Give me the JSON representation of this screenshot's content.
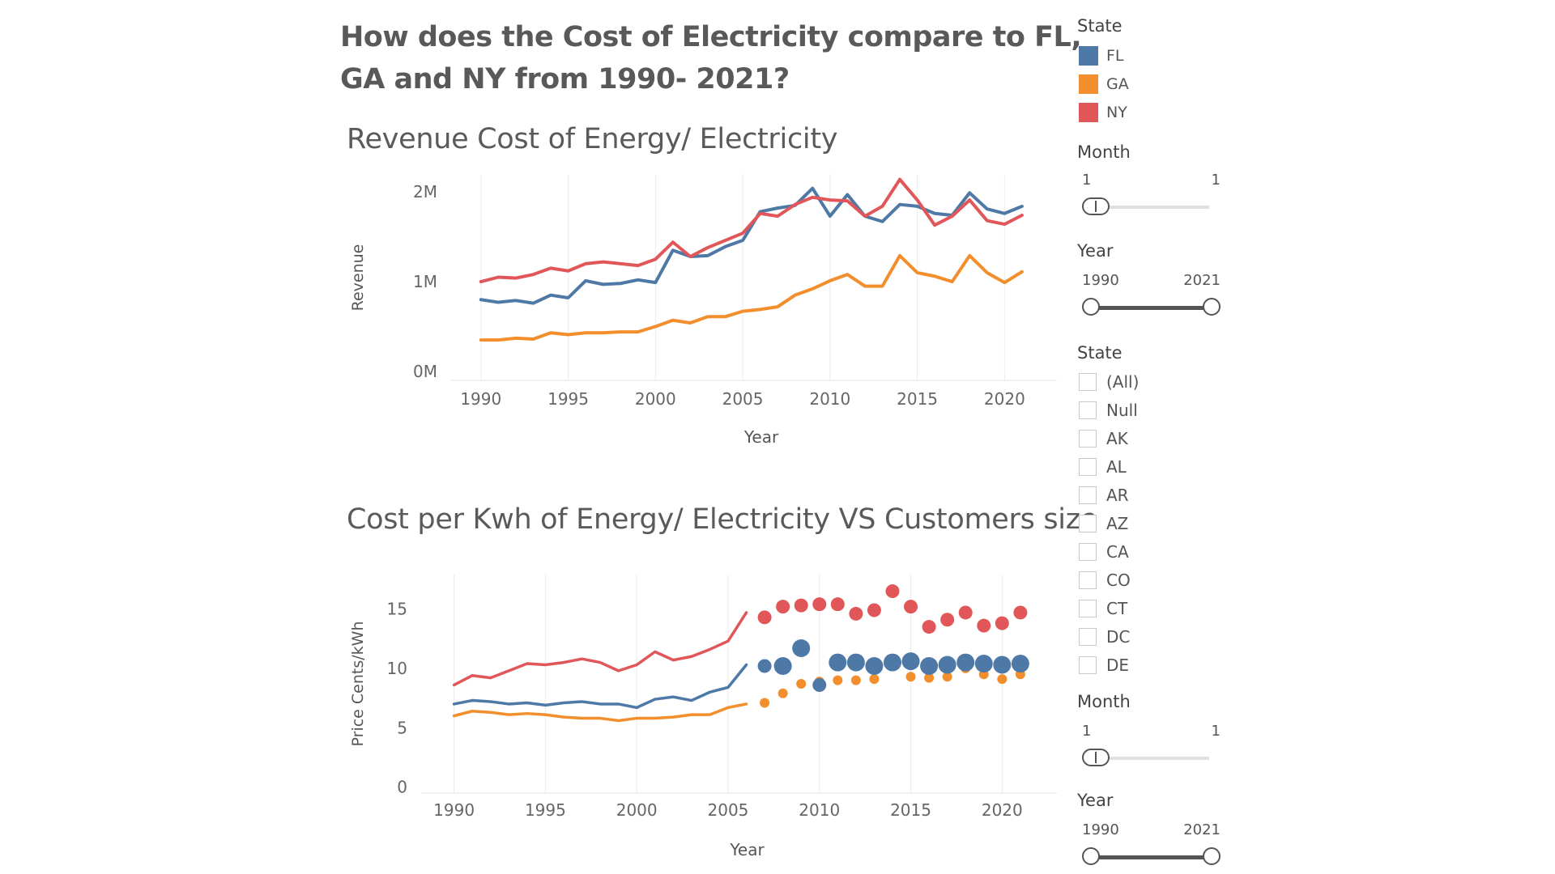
{
  "main_title": "How does the Cost of Electricity compare to FL, GA and NY from 1990- 2021?",
  "colors": {
    "FL": "#4e79a7",
    "GA": "#f28e2b",
    "NY": "#e15759"
  },
  "legend": {
    "title": "State",
    "items": [
      "FL",
      "GA",
      "NY"
    ]
  },
  "filters": {
    "month1": {
      "title": "Month",
      "min": "1",
      "max": "1"
    },
    "year1": {
      "title": "Year",
      "min": "1990",
      "max": "2021"
    },
    "state": {
      "title": "State",
      "items": [
        "(All)",
        "Null",
        "AK",
        "AL",
        "AR",
        "AZ",
        "CA",
        "CO",
        "CT",
        "DC",
        "DE"
      ]
    },
    "month2": {
      "title": "Month",
      "min": "1",
      "max": "1"
    },
    "year2": {
      "title": "Year",
      "min": "1990",
      "max": "2021"
    }
  },
  "chart_data": [
    {
      "type": "line",
      "title": "Revenue Cost of Energy/ Electricity",
      "xlabel": "Year",
      "ylabel": "Revenue",
      "xlim": [
        1988.2,
        2023
      ],
      "ylim": [
        -0.1,
        2.2
      ],
      "yticks": [
        0,
        1,
        2
      ],
      "ytick_labels": [
        "0M",
        "1M",
        "2M"
      ],
      "xticks": [
        1990,
        1995,
        2000,
        2005,
        2010,
        2015,
        2020
      ],
      "x": [
        1990,
        1991,
        1992,
        1993,
        1994,
        1995,
        1996,
        1997,
        1998,
        1999,
        2000,
        2001,
        2002,
        2003,
        2004,
        2005,
        2006,
        2007,
        2008,
        2009,
        2010,
        2011,
        2012,
        2013,
        2014,
        2015,
        2016,
        2017,
        2018,
        2019,
        2020,
        2021
      ],
      "series": [
        {
          "name": "FL",
          "values": [
            0.8,
            0.77,
            0.79,
            0.76,
            0.85,
            0.82,
            1.01,
            0.97,
            0.98,
            1.02,
            0.99,
            1.35,
            1.28,
            1.29,
            1.39,
            1.46,
            1.78,
            1.82,
            1.85,
            2.04,
            1.73,
            1.97,
            1.73,
            1.67,
            1.86,
            1.84,
            1.76,
            1.74,
            1.99,
            1.81,
            1.76,
            1.84
          ]
        },
        {
          "name": "GA",
          "values": [
            0.35,
            0.35,
            0.37,
            0.36,
            0.43,
            0.41,
            0.43,
            0.43,
            0.44,
            0.44,
            0.5,
            0.57,
            0.54,
            0.61,
            0.61,
            0.67,
            0.69,
            0.72,
            0.85,
            0.92,
            1.01,
            1.08,
            0.95,
            0.95,
            1.29,
            1.1,
            1.06,
            1.0,
            1.29,
            1.1,
            0.99,
            1.11
          ]
        },
        {
          "name": "NY",
          "values": [
            1.0,
            1.05,
            1.04,
            1.08,
            1.15,
            1.12,
            1.2,
            1.22,
            1.2,
            1.18,
            1.25,
            1.44,
            1.28,
            1.38,
            1.46,
            1.54,
            1.76,
            1.73,
            1.86,
            1.94,
            1.91,
            1.9,
            1.73,
            1.84,
            2.14,
            1.91,
            1.63,
            1.73,
            1.91,
            1.68,
            1.64,
            1.74
          ]
        }
      ]
    },
    {
      "type": "line",
      "title": "Cost per Kwh of Energy/ Electricity VS Customers size",
      "xlabel": "Year",
      "ylabel": "Price Cents/kWh",
      "xlim": [
        1988.2,
        2023
      ],
      "ylim": [
        -0.5,
        17.9
      ],
      "yticks": [
        0,
        5,
        10,
        15
      ],
      "ytick_labels": [
        "0",
        "5",
        "10",
        "15"
      ],
      "xticks": [
        1990,
        1995,
        2000,
        2005,
        2010,
        2015,
        2020
      ],
      "line_x": [
        1990,
        1991,
        1992,
        1993,
        1994,
        1995,
        1996,
        1997,
        1998,
        1999,
        2000,
        2001,
        2002,
        2003,
        2004,
        2005,
        2006
      ],
      "point_x": [
        2007,
        2008,
        2009,
        2010,
        2011,
        2012,
        2013,
        2014,
        2015,
        2016,
        2017,
        2018,
        2019,
        2020,
        2021
      ],
      "series": [
        {
          "name": "FL",
          "line_values": [
            7.0,
            7.3,
            7.2,
            7.0,
            7.1,
            6.9,
            7.1,
            7.2,
            7.0,
            7.0,
            6.7,
            7.4,
            7.6,
            7.3,
            8.0,
            8.4,
            10.3
          ],
          "point_values": [
            10.2,
            10.2,
            11.7,
            8.6,
            10.5,
            10.5,
            10.2,
            10.5,
            10.6,
            10.2,
            10.3,
            10.5,
            10.4,
            10.3,
            10.4
          ],
          "point_size": [
            2,
            3,
            3,
            2,
            3,
            3,
            3,
            3,
            3,
            3,
            3,
            3,
            3,
            3,
            3
          ]
        },
        {
          "name": "GA",
          "line_values": [
            6.0,
            6.4,
            6.3,
            6.1,
            6.2,
            6.1,
            5.9,
            5.8,
            5.8,
            5.6,
            5.8,
            5.8,
            5.9,
            6.1,
            6.1,
            6.7,
            7.0
          ],
          "point_values": [
            7.1,
            7.9,
            8.7,
            8.9,
            9.0,
            9.0,
            9.1,
            10.2,
            9.3,
            9.2,
            9.3,
            10.0,
            9.5,
            9.1,
            9.5
          ],
          "point_size": [
            1,
            1,
            1,
            1,
            1,
            1,
            1,
            1,
            1,
            1,
            1,
            1,
            1,
            1,
            1
          ]
        },
        {
          "name": "NY",
          "line_values": [
            8.6,
            9.4,
            9.2,
            9.8,
            10.4,
            10.3,
            10.5,
            10.8,
            10.5,
            9.8,
            10.3,
            11.4,
            10.7,
            11.0,
            11.6,
            12.3,
            14.7
          ],
          "point_values": [
            14.3,
            15.2,
            15.3,
            15.4,
            15.4,
            14.6,
            14.9,
            16.5,
            15.2,
            13.5,
            14.1,
            14.7,
            13.6,
            13.8,
            14.7
          ],
          "point_size": [
            2,
            2,
            2,
            2,
            2,
            2,
            2,
            2,
            2,
            2,
            2,
            2,
            2,
            2,
            2
          ]
        }
      ]
    }
  ]
}
